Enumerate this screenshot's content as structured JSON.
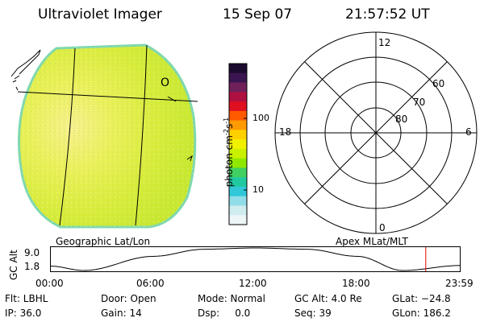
{
  "header": {
    "instrument": "Ultraviolet Imager",
    "date": "15 Sep 07",
    "time": "21:57:52 UT"
  },
  "globe": {
    "label": "Geographic Lat/Lon",
    "glyph": "O"
  },
  "colorbar": {
    "unit_label": "photon cm",
    "unit_sup1": "-2",
    "unit_s": "s",
    "unit_sup2": "-1",
    "ticks": [
      "100",
      "10"
    ],
    "colors": [
      "#1a0a2e",
      "#3a1450",
      "#70205a",
      "#b01040",
      "#e01020",
      "#ff5a00",
      "#ff9a00",
      "#ffd000",
      "#f0f000",
      "#c8f000",
      "#90e800",
      "#40d060",
      "#20c8a0",
      "#30c8d8",
      "#90dde8",
      "#cfecef",
      "#eef6f7"
    ]
  },
  "polar": {
    "label": "Apex MLat/MLT",
    "mlt_labels": {
      "top": "12",
      "left": "18",
      "right": "6",
      "bottom": "0"
    },
    "ring_labels": [
      "60",
      "70",
      "80"
    ]
  },
  "altitude_plot": {
    "ylabel": "GC Alt",
    "yticks": [
      "9.0",
      "1.8"
    ],
    "xticks": [
      "00:00",
      "06:00",
      "12:00",
      "18:00",
      "23:59"
    ]
  },
  "status": {
    "row1": {
      "flt": "Flt: LBHL",
      "door": "Door: Open",
      "mode": "Mode: Normal",
      "gcalt": "GC Alt: 4.0 Re",
      "glat": "GLat: −24.8"
    },
    "row2": {
      "ip": "IP: 36.0",
      "gain": "Gain: 14",
      "dsp": "Dsp:     0.0",
      "seq": "Seq: 39",
      "glon": "GLon: 186.2"
    }
  },
  "chart_data": {
    "type": "line",
    "title": "",
    "xlabel": "",
    "ylabel": "GC Alt",
    "x_range_hours": [
      0,
      24
    ],
    "ylim": [
      1.8,
      9.0
    ],
    "series": [
      {
        "x": [
          0,
          2,
          6,
          9,
          12,
          15,
          18,
          20.6,
          24
        ],
        "values": [
          3.2,
          1.8,
          6.3,
          8.6,
          9.0,
          8.6,
          6.3,
          1.8,
          3.4
        ]
      }
    ],
    "marker_time_hours": 21.9649
  }
}
